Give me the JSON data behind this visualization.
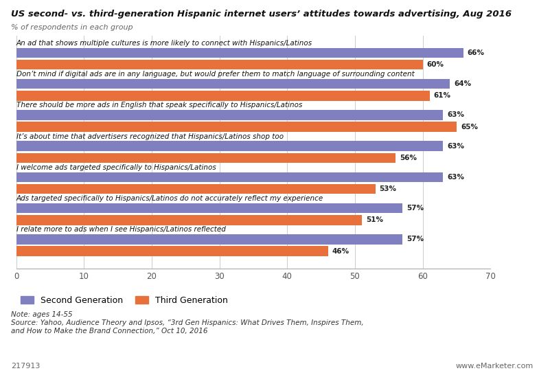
{
  "title": "US second- vs. third-generation Hispanic internet users’ attitudes towards advertising, Aug 2016",
  "subtitle": "% of respondents in each group",
  "categories": [
    "An ad that shows multiple cultures is more likely to connect with Hispanics/Latinos",
    "Don’t mind if digital ads are in any language, but would prefer them to match language of surrounding content",
    "There should be more ads in English that speak specifically to Hispanics/Latinos",
    "It’s about time that advertisers recognized that Hispanics/Latinos shop too",
    "I welcome ads targeted specifically to Hispanics/Latinos",
    "Ads targeted specifically to Hispanics/Latinos do not accurately reflect my experience",
    "I relate more to ads when I see Hispanics/Latinos reflected"
  ],
  "second_gen": [
    66,
    64,
    63,
    63,
    63,
    57,
    57
  ],
  "third_gen": [
    60,
    61,
    65,
    56,
    53,
    51,
    46
  ],
  "second_gen_color": "#8080c0",
  "third_gen_color": "#e8703a",
  "xlim": [
    0,
    70
  ],
  "xticks": [
    0,
    10,
    20,
    30,
    40,
    50,
    60,
    70
  ],
  "bar_height": 0.32,
  "background_color": "#ffffff",
  "note": "Note: ages 14-55\nSource: Yahoo, Audience Theory and Ipsos, “3rd Gen Hispanics: What Drives Them, Inspires Them,\nand How to Make the Brand Connection,” Oct 10, 2016",
  "chart_id": "217913",
  "website": "www.eMarketer.com",
  "label_fontsize": 7.5,
  "value_fontsize": 7.5
}
